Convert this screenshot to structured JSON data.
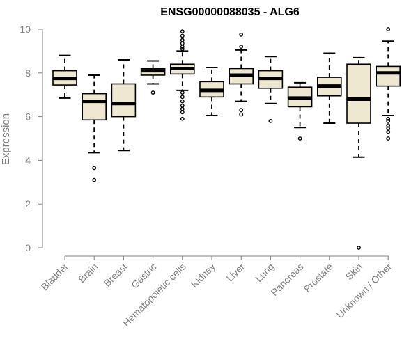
{
  "chart_data": {
    "type": "box",
    "title": "ENSG00000088035 - ALG6",
    "xlabel": "",
    "ylabel": "Expression",
    "ylim": [
      0,
      10
    ],
    "yticks": [
      0,
      2,
      4,
      6,
      8,
      10
    ],
    "box_fill": "#efe8d0",
    "box_stroke": "#000000",
    "categories": [
      "Bladder",
      "Brain",
      "Breast",
      "Gastric",
      "Hematopoietic cells",
      "Kidney",
      "Liver",
      "Lung",
      "Pancreas",
      "Prostate",
      "Skin",
      "Unknown / Other"
    ],
    "boxes": [
      {
        "whisker_low": 6.85,
        "q1": 7.45,
        "median": 7.75,
        "q3": 8.1,
        "whisker_high": 8.8,
        "outliers": []
      },
      {
        "whisker_low": 4.35,
        "q1": 5.85,
        "median": 6.7,
        "q3": 7.05,
        "whisker_high": 7.9,
        "outliers": [
          3.65,
          3.1
        ]
      },
      {
        "whisker_low": 4.45,
        "q1": 6.0,
        "median": 6.6,
        "q3": 7.5,
        "whisker_high": 8.6,
        "outliers": []
      },
      {
        "whisker_low": 7.5,
        "q1": 7.9,
        "median": 8.1,
        "q3": 8.2,
        "whisker_high": 8.55,
        "outliers": [
          7.1
        ]
      },
      {
        "whisker_low": 7.2,
        "q1": 7.95,
        "median": 8.2,
        "q3": 8.4,
        "whisker_high": 9.0,
        "outliers": [
          9.9,
          9.7,
          9.5,
          9.35,
          9.2,
          9.1,
          7.1,
          6.9,
          6.7,
          6.5,
          6.35,
          6.2,
          5.9
        ]
      },
      {
        "whisker_low": 6.05,
        "q1": 6.9,
        "median": 7.2,
        "q3": 7.6,
        "whisker_high": 8.25,
        "outliers": []
      },
      {
        "whisker_low": 6.7,
        "q1": 7.5,
        "median": 7.9,
        "q3": 8.2,
        "whisker_high": 9.05,
        "outliers": [
          9.75,
          9.2,
          6.3,
          6.1
        ]
      },
      {
        "whisker_low": 6.6,
        "q1": 7.3,
        "median": 7.75,
        "q3": 8.1,
        "whisker_high": 8.75,
        "outliers": [
          5.8
        ]
      },
      {
        "whisker_low": 5.5,
        "q1": 6.45,
        "median": 6.85,
        "q3": 7.35,
        "whisker_high": 7.55,
        "outliers": [
          5.0
        ]
      },
      {
        "whisker_low": 5.7,
        "q1": 6.95,
        "median": 7.4,
        "q3": 7.8,
        "whisker_high": 8.9,
        "outliers": []
      },
      {
        "whisker_low": 4.15,
        "q1": 5.7,
        "median": 6.8,
        "q3": 8.4,
        "whisker_high": 8.7,
        "outliers": [
          0.0
        ]
      },
      {
        "whisker_low": 6.05,
        "q1": 7.4,
        "median": 8.0,
        "q3": 8.3,
        "whisker_high": 9.45,
        "outliers": [
          10.0,
          5.9,
          5.8,
          5.6,
          5.45,
          5.3,
          5.0
        ]
      }
    ]
  }
}
